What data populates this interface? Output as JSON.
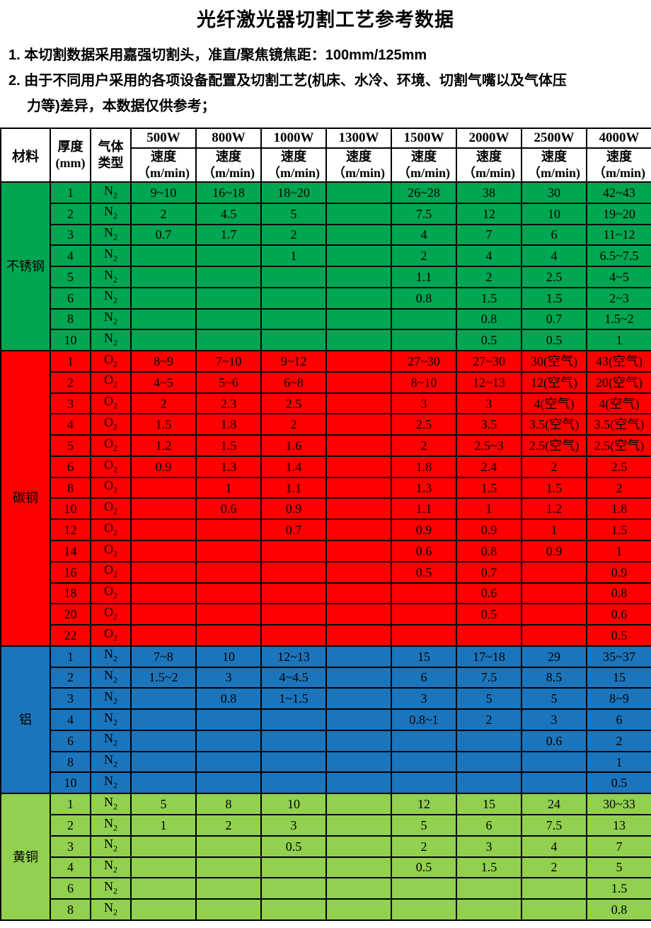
{
  "title": "光纤激光器切割工艺参考数据",
  "notes": [
    {
      "lines": [
        "1. 本切割数据采用嘉强切割头，准直/聚焦镜焦距：100mm/125mm"
      ]
    },
    {
      "lines": [
        "2. 由于不同用户采用的各项设备配置及切割工艺(机床、水冷、环境、切割气嘴以及气体压",
        "力等)差异，本数据仅供参考；"
      ]
    }
  ],
  "table": {
    "header": {
      "material": "材料",
      "thickness_line1": "厚度",
      "thickness_line2": "(mm)",
      "gas_line1": "气体",
      "gas_line2": "类型",
      "powers": [
        "500W",
        "800W",
        "1000W",
        "1300W",
        "1500W",
        "2000W",
        "2500W",
        "4000W"
      ],
      "speed_line1": "速度",
      "speed_line2": "（m/min)"
    },
    "sections": [
      {
        "material": "不锈钢",
        "color": "#00A651",
        "gas": "N",
        "gas_sub": "2",
        "rows": [
          {
            "thickness": "1",
            "speeds": [
              "9~10",
              "16~18",
              "18~20",
              "",
              "26~28",
              "38",
              "30",
              "42~43"
            ]
          },
          {
            "thickness": "2",
            "speeds": [
              "2",
              "4.5",
              "5",
              "",
              "7.5",
              "12",
              "10",
              "19~20"
            ]
          },
          {
            "thickness": "3",
            "speeds": [
              "0.7",
              "1.7",
              "2",
              "",
              "4",
              "7",
              "6",
              "11~12"
            ]
          },
          {
            "thickness": "4",
            "speeds": [
              "",
              "",
              "1",
              "",
              "2",
              "4",
              "4",
              "6.5~7.5"
            ]
          },
          {
            "thickness": "5",
            "speeds": [
              "",
              "",
              "",
              "",
              "1.1",
              "2",
              "2.5",
              "4~5"
            ]
          },
          {
            "thickness": "6",
            "speeds": [
              "",
              "",
              "",
              "",
              "0.8",
              "1.5",
              "1.5",
              "2~3"
            ]
          },
          {
            "thickness": "8",
            "speeds": [
              "",
              "",
              "",
              "",
              "",
              "0.8",
              "0.7",
              "1.5~2"
            ]
          },
          {
            "thickness": "10",
            "speeds": [
              "",
              "",
              "",
              "",
              "",
              "0.5",
              "0.5",
              "1"
            ]
          }
        ]
      },
      {
        "material": "碳钢",
        "color": "#FF0000",
        "gas": "O",
        "gas_sub": "2",
        "rows": [
          {
            "thickness": "1",
            "speeds": [
              "8~9",
              "7~10",
              "9~12",
              "",
              "27~30",
              "27~30",
              "30(空气)",
              "43(空气)"
            ]
          },
          {
            "thickness": "2",
            "speeds": [
              "4~5",
              "5~6",
              "6~8",
              "",
              "8~10",
              "12~13",
              "12(空气)",
              "20(空气)"
            ]
          },
          {
            "thickness": "3",
            "speeds": [
              "2",
              "2.3",
              "2.5",
              "",
              "3",
              "3",
              "4(空气)",
              "4(空气)"
            ]
          },
          {
            "thickness": "4",
            "speeds": [
              "1.5",
              "1.8",
              "2",
              "",
              "2.5",
              "3.5",
              "3.5(空气)",
              "3.5(空气)"
            ]
          },
          {
            "thickness": "5",
            "speeds": [
              "1.2",
              "1.5",
              "1.6",
              "",
              "2",
              "2.5~3",
              "2.5(空气)",
              "2.5(空气)"
            ]
          },
          {
            "thickness": "6",
            "speeds": [
              "0.9",
              "1.3",
              "1.4",
              "",
              "1.8",
              "2.4",
              "2",
              "2.5"
            ]
          },
          {
            "thickness": "8",
            "speeds": [
              "",
              "1",
              "1.1",
              "",
              "1.3",
              "1.5",
              "1.5",
              "2"
            ]
          },
          {
            "thickness": "10",
            "speeds": [
              "",
              "0.6",
              "0.9",
              "",
              "1.1",
              "1",
              "1.2",
              "1.8"
            ]
          },
          {
            "thickness": "12",
            "speeds": [
              "",
              "",
              "0.7",
              "",
              "0.9",
              "0.9",
              "1",
              "1.5"
            ]
          },
          {
            "thickness": "14",
            "speeds": [
              "",
              "",
              "",
              "",
              "0.6",
              "0.8",
              "0.9",
              "1"
            ]
          },
          {
            "thickness": "16",
            "speeds": [
              "",
              "",
              "",
              "",
              "0.5",
              "0.7",
              "",
              "0.9"
            ]
          },
          {
            "thickness": "18",
            "speeds": [
              "",
              "",
              "",
              "",
              "",
              "0.6",
              "",
              "0.8"
            ]
          },
          {
            "thickness": "20",
            "speeds": [
              "",
              "",
              "",
              "",
              "",
              "0.5",
              "",
              "0.6"
            ]
          },
          {
            "thickness": "22",
            "speeds": [
              "",
              "",
              "",
              "",
              "",
              "",
              "",
              "0.5"
            ]
          }
        ]
      },
      {
        "material": "铝",
        "color": "#1B75BC",
        "gas": "N",
        "gas_sub": "2",
        "rows": [
          {
            "thickness": "1",
            "speeds": [
              "7~8",
              "10",
              "12~13",
              "",
              "15",
              "17~18",
              "29",
              "35~37"
            ]
          },
          {
            "thickness": "2",
            "speeds": [
              "1.5~2",
              "3",
              "4~4.5",
              "",
              "6",
              "7.5",
              "8.5",
              "15"
            ]
          },
          {
            "thickness": "3",
            "speeds": [
              "",
              "0.8",
              "1~1.5",
              "",
              "3",
              "5",
              "5",
              "8~9"
            ]
          },
          {
            "thickness": "4",
            "speeds": [
              "",
              "",
              "",
              "",
              "0.8~1",
              "2",
              "3",
              "6"
            ]
          },
          {
            "thickness": "6",
            "speeds": [
              "",
              "",
              "",
              "",
              "",
              "",
              "0.6",
              "2"
            ]
          },
          {
            "thickness": "8",
            "speeds": [
              "",
              "",
              "",
              "",
              "",
              "",
              "",
              "1"
            ]
          },
          {
            "thickness": "10",
            "speeds": [
              "",
              "",
              "",
              "",
              "",
              "",
              "",
              "0.5"
            ]
          }
        ]
      },
      {
        "material": "黄铜",
        "color": "#92D050",
        "gas": "N",
        "gas_sub": "2",
        "rows": [
          {
            "thickness": "1",
            "speeds": [
              "5",
              "8",
              "10",
              "",
              "12",
              "15",
              "24",
              "30~33"
            ]
          },
          {
            "thickness": "2",
            "speeds": [
              "1",
              "2",
              "3",
              "",
              "5",
              "6",
              "7.5",
              "13"
            ]
          },
          {
            "thickness": "3",
            "speeds": [
              "",
              "",
              "0.5",
              "",
              "2",
              "3",
              "4",
              "7"
            ]
          },
          {
            "thickness": "4",
            "speeds": [
              "",
              "",
              "",
              "",
              "0.5",
              "1.5",
              "2",
              "5"
            ]
          },
          {
            "thickness": "6",
            "speeds": [
              "",
              "",
              "",
              "",
              "",
              "",
              "",
              "1.5"
            ]
          },
          {
            "thickness": "8",
            "speeds": [
              "",
              "",
              "",
              "",
              "",
              "",
              "",
              "0.8"
            ]
          }
        ]
      }
    ]
  }
}
